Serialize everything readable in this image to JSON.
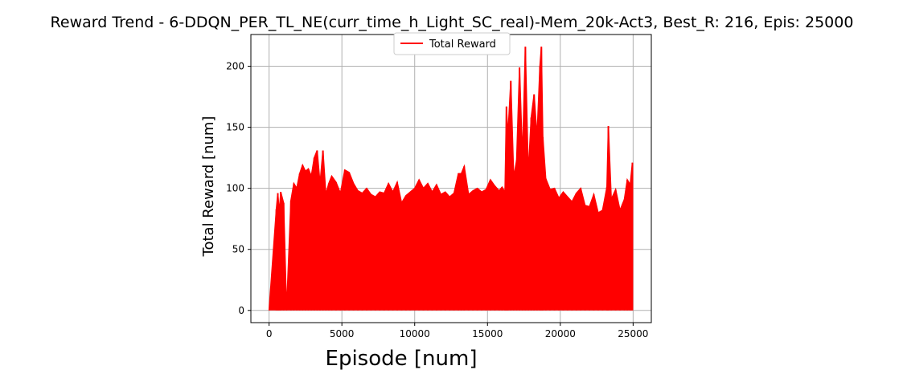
{
  "chart_data": {
    "type": "line",
    "title": "Reward Trend - 6-DDQN_PER_TL_NE(curr_time_h_Light_SC_real)-Mem_20k-Act3, Best_R: 216, Epis: 25000",
    "xlabel": "Episode [num]",
    "ylabel": "Total Reward [num]",
    "xlim": [
      -1250,
      26250
    ],
    "ylim": [
      -10,
      226
    ],
    "xticks": [
      0,
      5000,
      10000,
      15000,
      20000,
      25000
    ],
    "yticks": [
      0,
      50,
      100,
      150,
      200
    ],
    "grid": true,
    "legend_position": "top-center",
    "series": [
      {
        "name": "Total Reward",
        "color": "#ff0000",
        "baseline": 0,
        "x": [
          0,
          500,
          600,
          700,
          800,
          1000,
          1200,
          1500,
          1700,
          1900,
          2100,
          2300,
          2500,
          2700,
          2900,
          3100,
          3300,
          3500,
          3700,
          3900,
          4100,
          4300,
          4600,
          4900,
          5200,
          5500,
          5800,
          6100,
          6400,
          6700,
          7000,
          7300,
          7600,
          7900,
          8200,
          8500,
          8800,
          9100,
          9400,
          9700,
          10000,
          10300,
          10600,
          10900,
          11200,
          11500,
          11800,
          12100,
          12400,
          12700,
          13000,
          13200,
          13400,
          13700,
          14000,
          14300,
          14600,
          14900,
          15200,
          15500,
          15800,
          16000,
          16200,
          16300,
          16400,
          16600,
          16800,
          17000,
          17200,
          17400,
          17600,
          17800,
          18000,
          18200,
          18400,
          18600,
          18700,
          18800,
          19000,
          19300,
          19600,
          19900,
          20200,
          20500,
          20800,
          21100,
          21400,
          21700,
          22000,
          22300,
          22600,
          22900,
          23200,
          23300,
          23500,
          23800,
          24100,
          24400,
          24600,
          24800,
          24950
        ],
        "values": [
          0,
          83,
          96,
          80,
          97,
          88,
          0,
          90,
          104,
          100,
          112,
          119,
          114,
          116,
          110,
          125,
          131,
          104,
          131,
          95,
          104,
          110,
          105,
          96,
          115,
          113,
          104,
          98,
          96,
          100,
          95,
          93,
          97,
          96,
          104,
          97,
          105,
          88,
          94,
          97,
          100,
          107,
          100,
          104,
          97,
          103,
          95,
          97,
          93,
          96,
          112,
          112,
          118,
          95,
          98,
          100,
          97,
          99,
          107,
          102,
          98,
          101,
          97,
          167,
          143,
          188,
          109,
          123,
          199,
          125,
          216,
          112,
          158,
          177,
          142,
          200,
          216,
          142,
          108,
          99,
          100,
          92,
          97,
          93,
          89,
          96,
          100,
          86,
          85,
          95,
          80,
          82,
          101,
          151,
          91,
          99,
          82,
          91,
          107,
          103,
          121
        ]
      }
    ]
  }
}
